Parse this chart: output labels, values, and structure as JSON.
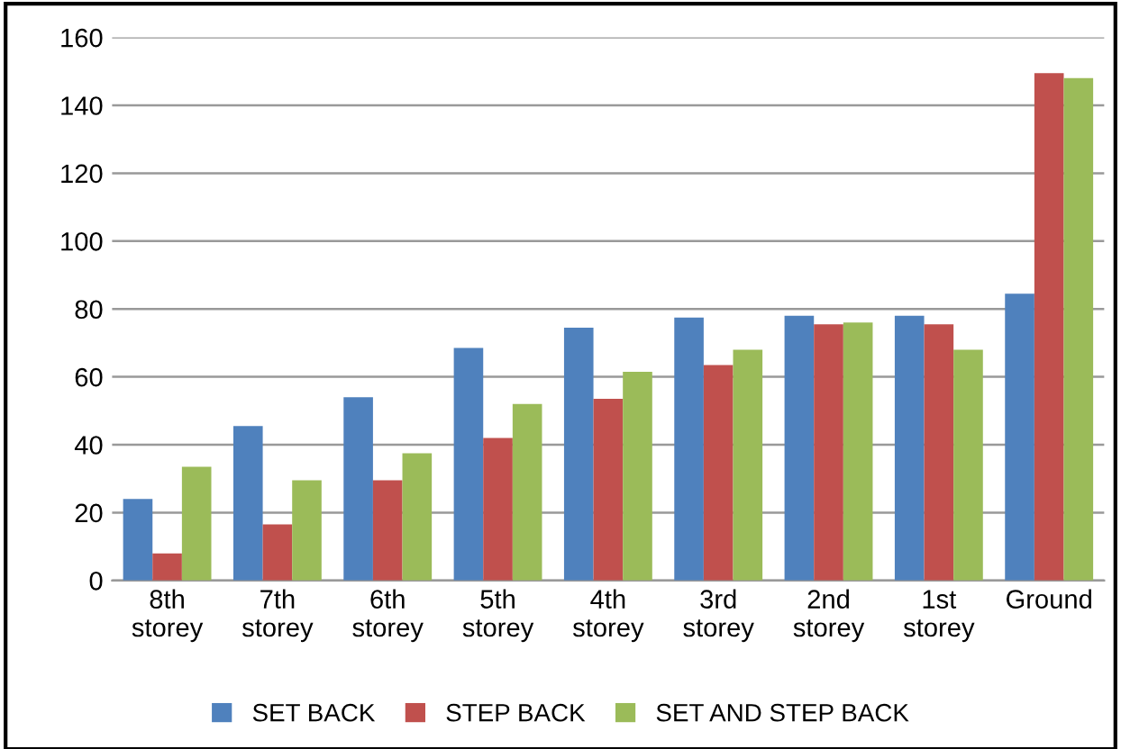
{
  "chart_data": {
    "type": "bar",
    "categories": [
      "8th\nstorey",
      "7th\nstorey",
      "6th\nstorey",
      "5th\nstorey",
      "4th\nstorey",
      "3rd\nstorey",
      "2nd\nstorey",
      "1st\nstorey",
      "Ground"
    ],
    "series": [
      {
        "name": "SET BACK",
        "color": "#4f81bd",
        "values": [
          24,
          45.5,
          54,
          68.5,
          74.5,
          77.5,
          78,
          78,
          84.5
        ]
      },
      {
        "name": "STEP BACK",
        "color": "#c0504d",
        "values": [
          8,
          16.5,
          29.5,
          42,
          53.5,
          63.5,
          75.5,
          75.5,
          149.5
        ]
      },
      {
        "name": "SET AND STEP BACK",
        "color": "#9bbb59",
        "values": [
          33.5,
          29.5,
          37.5,
          52,
          61.5,
          68,
          76,
          68,
          148
        ]
      }
    ],
    "ylim": [
      0,
      160
    ],
    "yticks": [
      0,
      20,
      40,
      60,
      80,
      100,
      120,
      140,
      160
    ],
    "grid": "y",
    "legend": "bottom"
  }
}
